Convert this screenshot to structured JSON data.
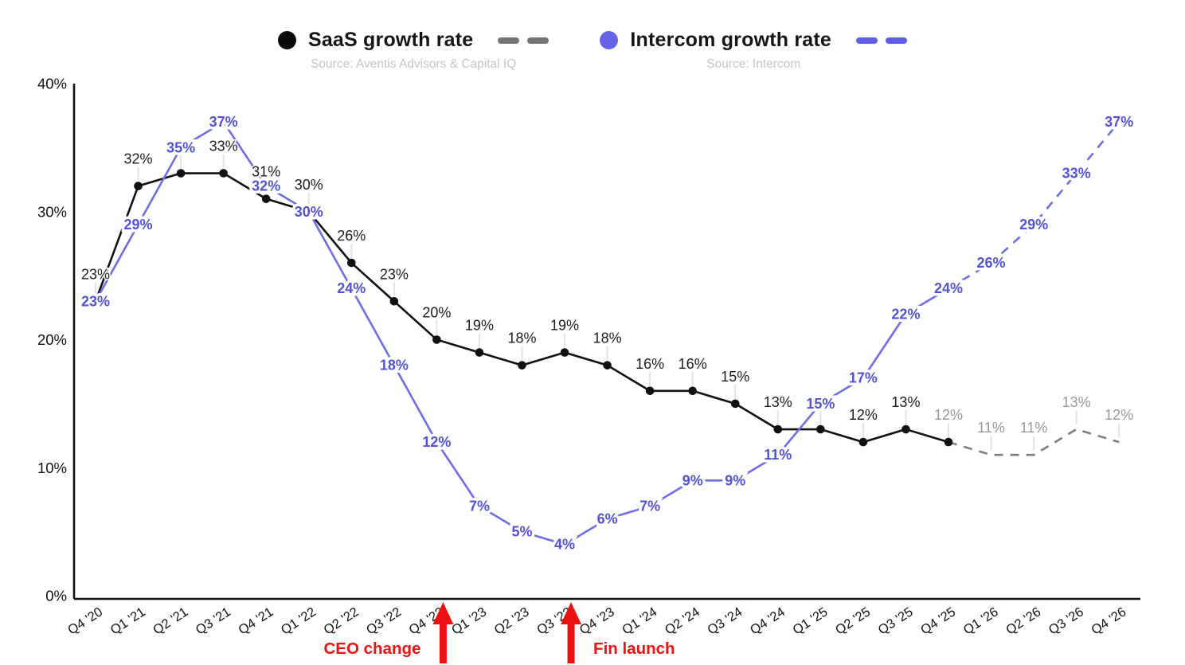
{
  "legend": {
    "items": [
      {
        "label": "SaaS growth rate",
        "source": "Source: Aventis Advisors & Capital IQ",
        "marker_color": "#0a0a0a",
        "dash_color": "#757575"
      },
      {
        "label": "Intercom growth rate",
        "source": "Source: Intercom",
        "marker_color": "#6563e8",
        "dash_color": "#5f5de6"
      }
    ]
  },
  "chart_data": {
    "type": "line",
    "title": "",
    "xlabel": "",
    "ylabel": "",
    "categories": [
      "Q4 '20",
      "Q1 '21",
      "Q2 '21",
      "Q3 '21",
      "Q4 '21",
      "Q1 '22",
      "Q2 '22",
      "Q3 '22",
      "Q4 '22",
      "Q1 '23",
      "Q2 '23",
      "Q3 '23",
      "Q4 '23",
      "Q1 '24",
      "Q2 '24",
      "Q3 '24",
      "Q4 '24",
      "Q1 '25",
      "Q2 '25",
      "Q3 '25",
      "Q4 '25",
      "Q1 '26",
      "Q2 '26",
      "Q3 '26",
      "Q4 '26"
    ],
    "ylim": [
      0,
      40
    ],
    "ytick_values": [
      0,
      10,
      20,
      30,
      40
    ],
    "ytick_labels": [
      "0%",
      "10%",
      "20%",
      "30%",
      "40%"
    ],
    "grid": false,
    "legend_position": "top",
    "series": [
      {
        "name": "SaaS growth rate",
        "values": [
          23,
          32,
          33,
          33,
          31,
          30,
          26,
          23,
          20,
          19,
          18,
          19,
          18,
          16,
          16,
          15,
          13,
          13,
          12,
          13,
          12,
          11,
          11,
          13,
          12
        ],
        "labels": [
          "23%",
          "32%",
          "33%",
          "33%",
          "31%",
          "30%",
          "26%",
          "23%",
          "20%",
          "19%",
          "18%",
          "19%",
          "18%",
          "16%",
          "16%",
          "15%",
          "13%",
          "13%",
          "12%",
          "13%",
          "12%",
          "11%",
          "11%",
          "13%",
          "12%"
        ],
        "forecast_from_index": 20,
        "line_color": "#111111",
        "forecast_line_color": "#7d7d7d",
        "label_color": "#1c1c1c",
        "forecast_label_color": "#979797",
        "markers": true,
        "label_position": "above"
      },
      {
        "name": "Intercom growth rate",
        "values": [
          23,
          29,
          35,
          37,
          32,
          30,
          24,
          18,
          12,
          7,
          5,
          4,
          6,
          7,
          9,
          9,
          11,
          15,
          17,
          22,
          24,
          26,
          29,
          33,
          37
        ],
        "labels": [
          "23%",
          "29%",
          "35%",
          "37%",
          "32%",
          "30%",
          "24%",
          "18%",
          "12%",
          "7%",
          "5%",
          "4%",
          "6%",
          "7%",
          "9%",
          "9%",
          "11%",
          "15%",
          "17%",
          "22%",
          "24%",
          "26%",
          "29%",
          "33%",
          "37%"
        ],
        "forecast_from_index": 20,
        "line_color": "#6e6ce6",
        "forecast_line_color": "#6e6ce6",
        "label_color": "#5351d4",
        "forecast_label_color": "#5351d4",
        "markers": false,
        "label_position": "on-point"
      }
    ],
    "annotations": [
      {
        "label": "CEO change",
        "category": "Q4 '22",
        "text_side": "left",
        "color": "#ee1111"
      },
      {
        "label": "Fin launch",
        "category": "Q3 '23",
        "text_side": "right",
        "color": "#ee1111"
      }
    ]
  }
}
